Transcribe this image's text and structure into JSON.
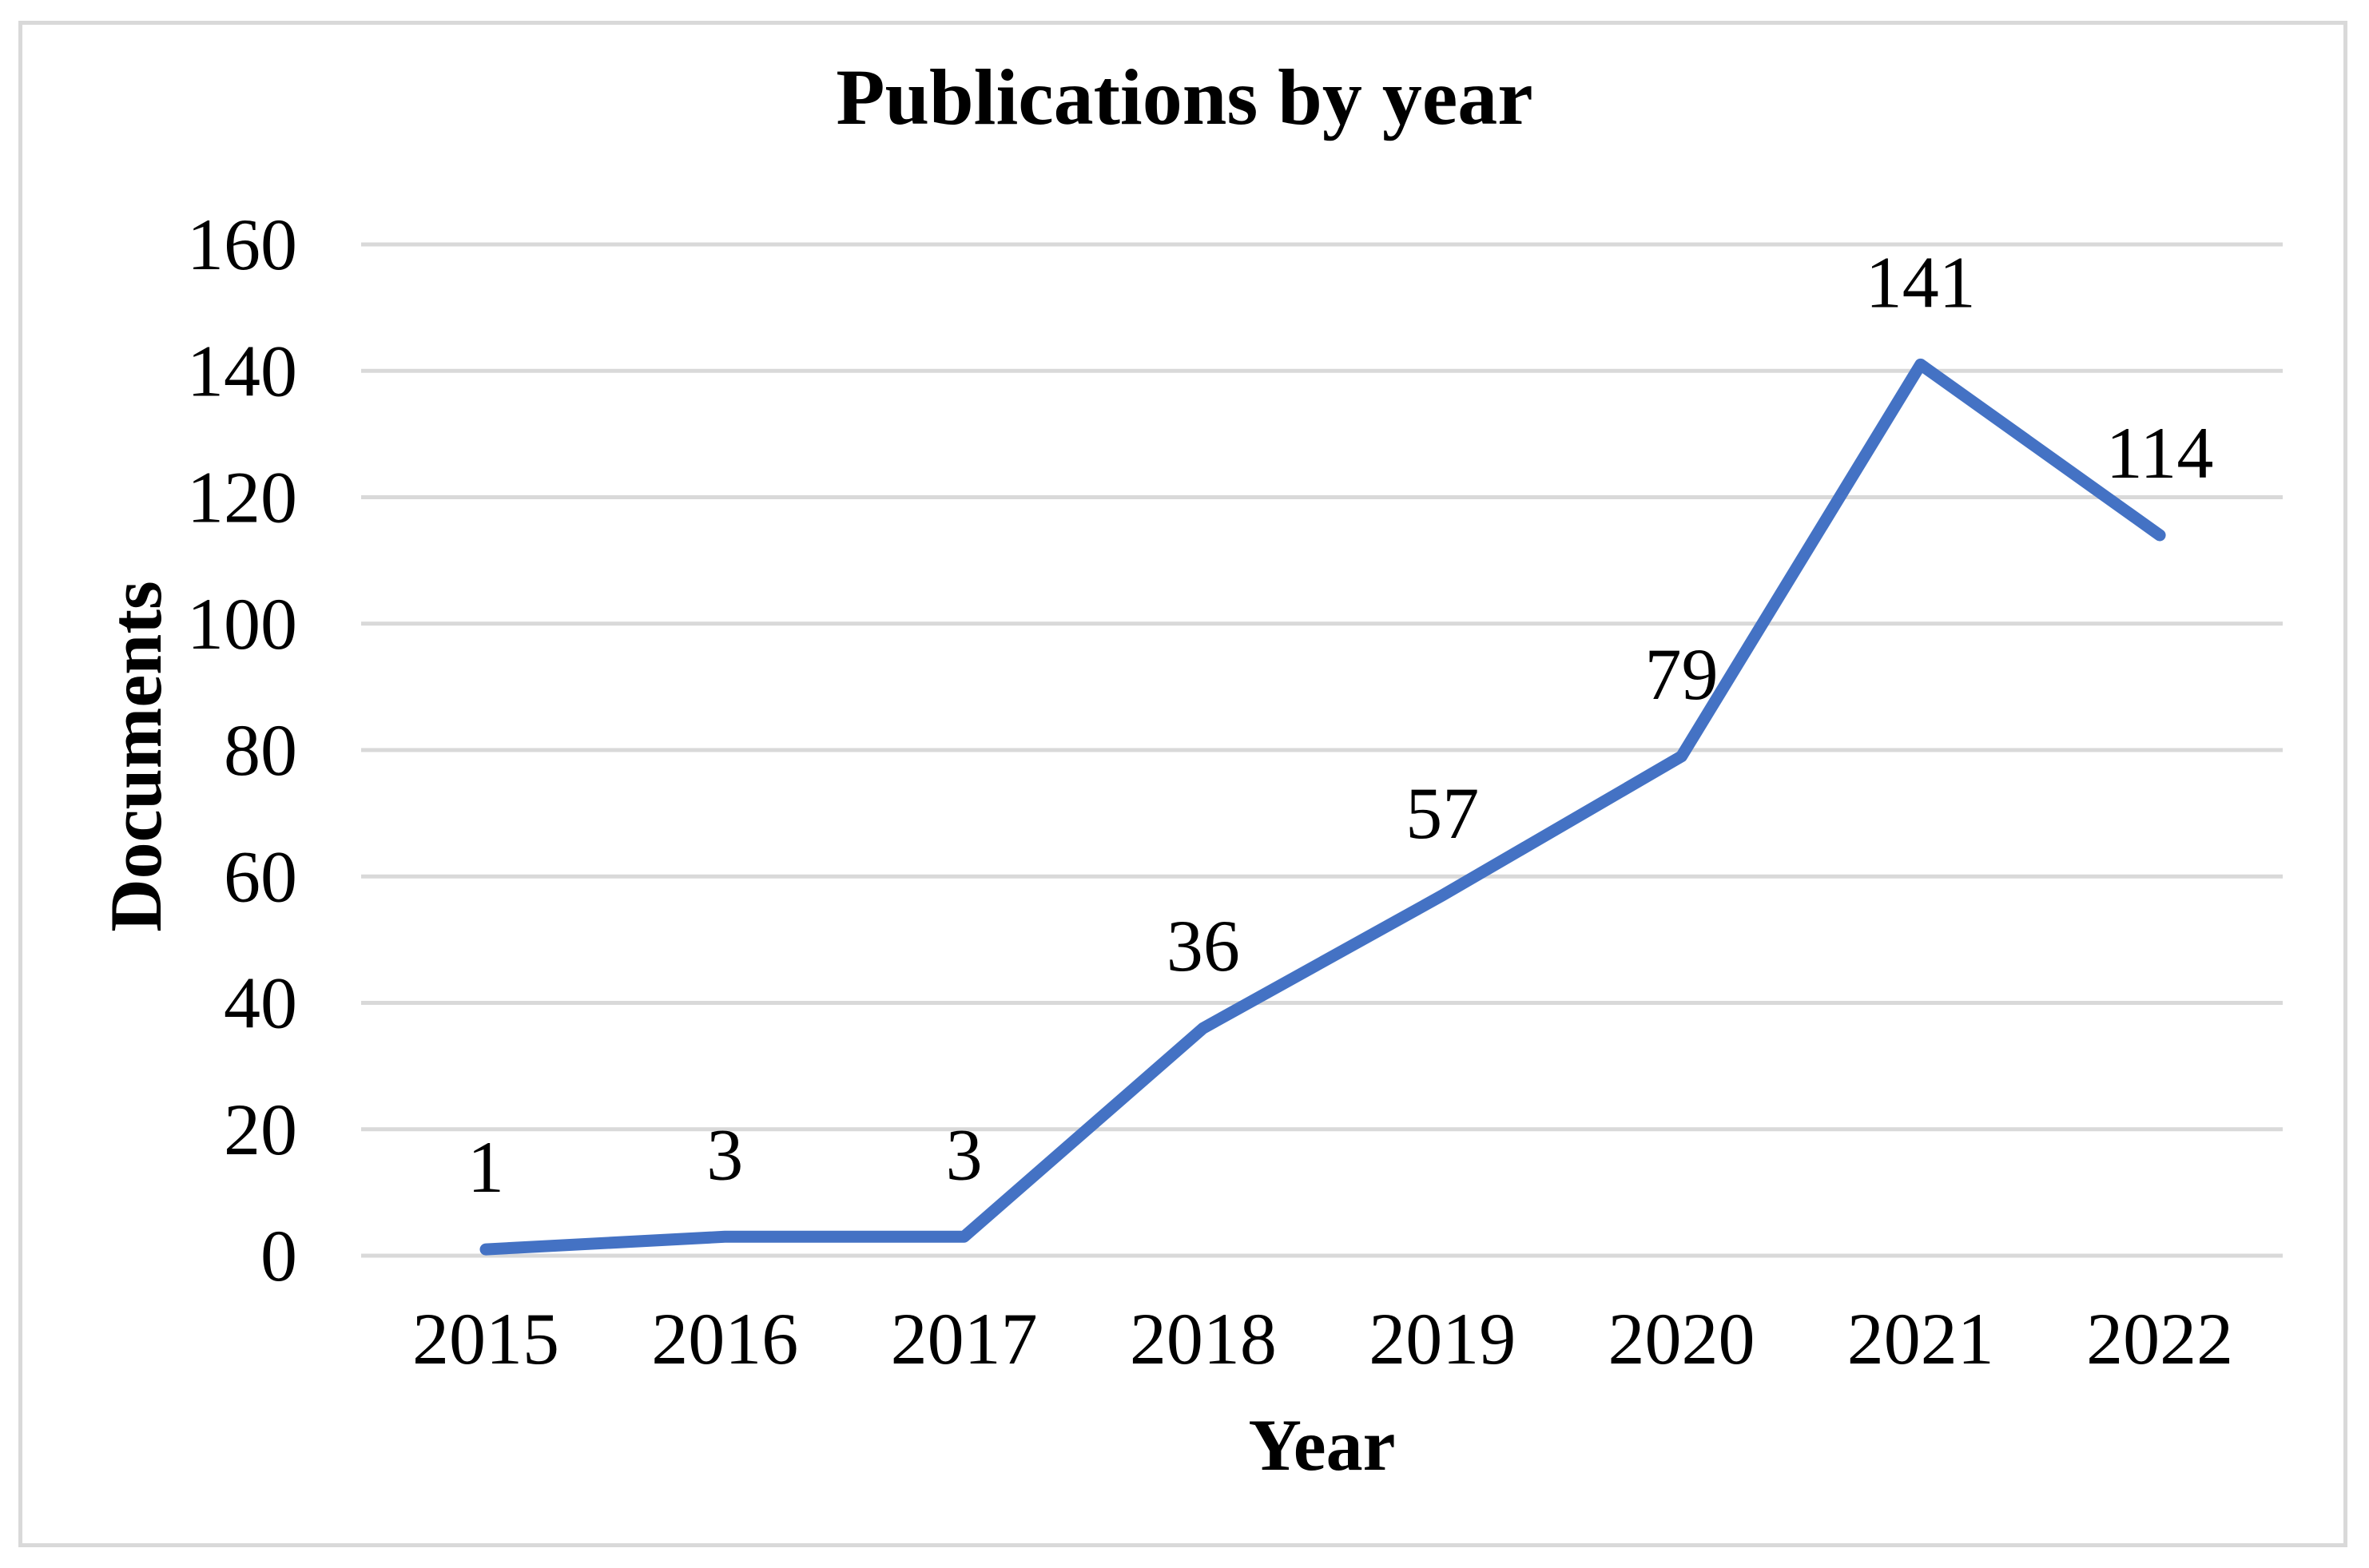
{
  "chart_data": {
    "type": "line",
    "title": "Publications by year",
    "xlabel": "Year",
    "ylabel": "Documents",
    "categories": [
      "2015",
      "2016",
      "2017",
      "2018",
      "2019",
      "2020",
      "2021",
      "2022"
    ],
    "values": [
      1,
      3,
      3,
      36,
      57,
      79,
      141,
      114
    ],
    "data_labels": [
      "1",
      "3",
      "3",
      "36",
      "57",
      "79",
      "141",
      "114"
    ],
    "data_label_position": "above",
    "ylim": [
      0,
      160
    ],
    "ytick_step": 20,
    "yticks": [
      "0",
      "20",
      "40",
      "60",
      "80",
      "100",
      "120",
      "140",
      "160"
    ],
    "grid": "horizontal",
    "legend": "none",
    "colors": {
      "line": "#4472C4",
      "gridline": "#D9D9D9",
      "frame": "#D9D9D9",
      "text": "#000000",
      "background": "#FFFFFF"
    }
  }
}
